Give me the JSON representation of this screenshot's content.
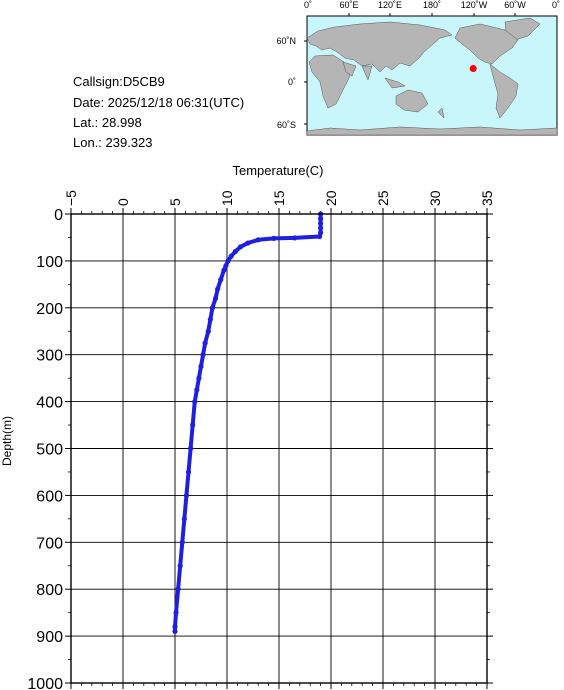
{
  "info": {
    "callsign": "Callsign:D5CB9",
    "date": "Date:  2025/12/18 06:31(UTC)",
    "lat": "Lat.:   28.998",
    "lon": "Lon.:  239.323"
  },
  "map": {
    "lon_labels": [
      "0˚",
      "60˚E",
      "120˚E",
      "180˚",
      "120˚W",
      "60˚W",
      "0˚"
    ],
    "lat_labels": [
      "60˚N",
      "0˚",
      "60˚S"
    ],
    "marker_lat": 28.998,
    "marker_lon": 239.323,
    "ocean_color": "#c9f6fb",
    "land_color": "#b5b5b5",
    "marker_color": "#ff0000"
  },
  "chart_data": {
    "type": "line",
    "xlabel": "Temperature(C)",
    "ylabel": "Depth(m)",
    "xlim": [
      -5,
      35
    ],
    "ylim": [
      0,
      1000
    ],
    "y_inverted": true,
    "grid": true,
    "x_ticks": [
      "−5",
      "0",
      "5",
      "10",
      "15",
      "20",
      "25",
      "30",
      "35"
    ],
    "y_ticks": [
      "0",
      "100",
      "200",
      "300",
      "400",
      "500",
      "600",
      "700",
      "800",
      "900",
      "1000"
    ],
    "series_color": "#1f1fe0",
    "points": [
      [
        19.0,
        0
      ],
      [
        19.0,
        10
      ],
      [
        19.0,
        20
      ],
      [
        19.0,
        30
      ],
      [
        19.0,
        40
      ],
      [
        18.9,
        48
      ],
      [
        16.5,
        51
      ],
      [
        14.5,
        52
      ],
      [
        13.0,
        55
      ],
      [
        12.0,
        62
      ],
      [
        11.3,
        70
      ],
      [
        10.8,
        80
      ],
      [
        10.4,
        90
      ],
      [
        10.1,
        100
      ],
      [
        9.9,
        110
      ],
      [
        9.7,
        120
      ],
      [
        9.4,
        140
      ],
      [
        9.1,
        160
      ],
      [
        8.9,
        180
      ],
      [
        8.6,
        200
      ],
      [
        8.4,
        225
      ],
      [
        8.2,
        250
      ],
      [
        7.9,
        275
      ],
      [
        7.7,
        300
      ],
      [
        7.5,
        325
      ],
      [
        7.3,
        350
      ],
      [
        7.1,
        375
      ],
      [
        6.9,
        400
      ],
      [
        6.7,
        450
      ],
      [
        6.5,
        500
      ],
      [
        6.3,
        550
      ],
      [
        6.1,
        600
      ],
      [
        5.9,
        650
      ],
      [
        5.7,
        700
      ],
      [
        5.5,
        750
      ],
      [
        5.3,
        800
      ],
      [
        5.1,
        850
      ],
      [
        5.0,
        880
      ],
      [
        5.0,
        890
      ]
    ]
  }
}
